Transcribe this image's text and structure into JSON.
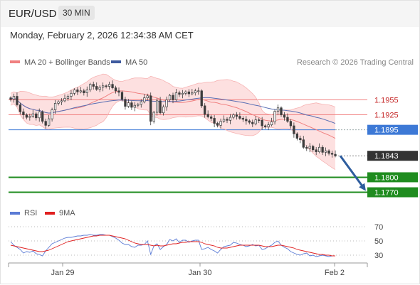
{
  "header": {
    "symbol": "EUR/USD",
    "timeframe": "30 MIN",
    "datetime": "Monday, February 2, 2026 12:34:38 AM CET"
  },
  "legend": {
    "ma20_label": "MA 20 + Bollinger Bands",
    "ma50_label": "MA 50",
    "credit": "Research © 2026 Trading Central",
    "rsi_label": "RSI",
    "rsi_ma_label": "9MA"
  },
  "colors": {
    "candle": "#3c3c3c",
    "ma20": "#f08080",
    "band_fill": "#fde0e0",
    "ma50": "#5a6fb4",
    "resistance": "#f08080",
    "pivot": "#3d79d6",
    "support": "#1f8c1f",
    "last": "#333333",
    "arrow": "#2e5d9e",
    "rsi": "#5b7bd5",
    "rsi_ma": "#e02020"
  },
  "chart_data": [
    {
      "type": "candlestick",
      "title": "EUR/USD 30 MIN",
      "y_range": [
        1.1748,
        1.2004
      ],
      "x_ticks": [
        "Jan 29",
        "Jan 30",
        "Feb 2"
      ],
      "levels": [
        {
          "value": 1.1955,
          "label": "1.1955",
          "kind": "resistance"
        },
        {
          "value": 1.1925,
          "label": "1.1925",
          "kind": "resistance"
        },
        {
          "value": 1.1895,
          "label": "1.1895",
          "kind": "pivot"
        },
        {
          "value": 1.1843,
          "label": "1.1843",
          "kind": "last"
        },
        {
          "value": 1.18,
          "label": "1.1800",
          "kind": "support"
        },
        {
          "value": 1.177,
          "label": "1.1770",
          "kind": "support"
        }
      ],
      "forecast_arrow": {
        "from": 1.1843,
        "to": 1.177,
        "direction": "down"
      },
      "close": [
        1.1956,
        1.1962,
        1.1945,
        1.1931,
        1.1925,
        1.192,
        1.1922,
        1.1927,
        1.1919,
        1.1931,
        1.1912,
        1.1904,
        1.1917,
        1.1935,
        1.1948,
        1.1951,
        1.1953,
        1.1958,
        1.1962,
        1.1968,
        1.1975,
        1.1971,
        1.1973,
        1.1969,
        1.1975,
        1.1986,
        1.1982,
        1.1976,
        1.198,
        1.1983,
        1.1982,
        1.1986,
        1.1979,
        1.1973,
        1.197,
        1.1956,
        1.1942,
        1.1949,
        1.194,
        1.1944,
        1.1946,
        1.1951,
        1.1959,
        1.1963,
        1.1912,
        1.193,
        1.1953,
        1.1929,
        1.1941,
        1.1955,
        1.1964,
        1.1955,
        1.1969,
        1.1966,
        1.1968,
        1.1971,
        1.1967,
        1.1969,
        1.1973,
        1.1973,
        1.1943,
        1.1926,
        1.1921,
        1.1918,
        1.1908,
        1.1904,
        1.1912,
        1.1916,
        1.1914,
        1.192,
        1.1925,
        1.1922,
        1.1918,
        1.1916,
        1.1913,
        1.191,
        1.1907,
        1.1915,
        1.1914,
        1.1903,
        1.1901,
        1.1905,
        1.1911,
        1.1932,
        1.1939,
        1.1925,
        1.192,
        1.1912,
        1.1903,
        1.1887,
        1.1878,
        1.1875,
        1.186,
        1.1858,
        1.1862,
        1.1855,
        1.1851,
        1.186,
        1.185,
        1.1853,
        1.1848,
        1.1846,
        1.1843
      ],
      "rsi_range": [
        20,
        80
      ],
      "rsi_levels": [
        70,
        50,
        30
      ],
      "rsi": [
        49,
        44,
        41,
        38,
        33,
        35,
        34,
        36,
        32,
        31,
        29,
        36,
        41,
        46,
        48,
        50,
        52,
        54,
        55,
        55,
        56,
        57,
        57,
        58,
        58,
        59,
        58,
        58,
        59,
        59,
        58,
        58,
        56,
        54,
        51,
        47,
        45,
        45,
        42,
        41,
        44,
        44,
        45,
        50,
        31,
        43,
        46,
        38,
        42,
        45,
        52,
        50,
        53,
        48,
        51,
        51,
        48,
        50,
        51,
        51,
        38,
        39,
        41,
        38,
        36,
        33,
        38,
        42,
        43,
        44,
        48,
        47,
        45,
        44,
        42,
        43,
        45,
        43,
        44,
        38,
        39,
        42,
        44,
        48,
        50,
        44,
        41,
        39,
        35,
        33,
        31,
        30,
        32,
        33,
        29,
        30,
        28,
        29,
        30,
        29,
        28,
        29,
        29
      ],
      "rsi_ma": [
        44,
        43,
        42,
        41,
        40,
        39,
        38,
        37,
        36,
        35,
        35,
        36,
        37,
        39,
        41,
        43,
        45,
        47,
        49,
        50,
        51,
        52,
        53,
        54,
        55,
        56,
        57,
        57,
        58,
        58,
        58,
        58,
        57,
        56,
        55,
        54,
        53,
        51,
        49,
        47,
        46,
        45,
        45,
        45,
        44,
        43,
        44,
        43,
        43,
        44,
        45,
        46,
        46,
        47,
        48,
        48,
        49,
        49,
        49,
        49,
        48,
        46,
        45,
        44,
        43,
        41,
        40,
        40,
        40,
        41,
        42,
        43,
        44,
        44,
        44,
        44,
        44,
        44,
        44,
        43,
        42,
        42,
        42,
        43,
        44,
        44,
        43,
        42,
        41,
        40,
        38,
        37,
        36,
        35,
        34,
        33,
        32,
        31,
        31,
        30,
        30,
        29,
        29
      ]
    }
  ]
}
